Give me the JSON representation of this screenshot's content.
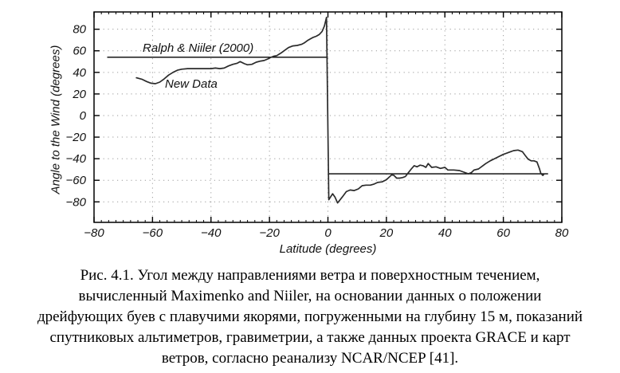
{
  "figure": {
    "caption": {
      "lines": [
        "Рис. 4.1. Угол между направлениями ветра и поверхностным течением,",
        "вычисленный Maximenko and Niiler, на основании данных о положении",
        "дрейфующих буев с плавучими якорями, погруженными на глубину 15 м, показаний",
        "спутниковых альтиметров, гравиметрии, а также данных проекта GRACE и карт",
        "ветров, согласно реанализу NCAR/NCEP [41]."
      ]
    }
  },
  "chart_data": {
    "type": "line",
    "title": "",
    "xlabel": "Latitude (degrees)",
    "ylabel": "Angle to the Wind (degrees)",
    "xlim": [
      -80,
      80
    ],
    "ylim": [
      -99,
      96
    ],
    "xticks": [
      -80,
      -60,
      -40,
      -20,
      0,
      20,
      40,
      60,
      80
    ],
    "yticks": [
      -80,
      -60,
      -40,
      -20,
      0,
      20,
      40,
      60,
      80
    ],
    "x_minor_tick_step": 2.5,
    "grid": "dotted",
    "legend_position": "none",
    "colors": {
      "curve": "#2b2b2b",
      "reference_line": "#000000",
      "grid": "#9a9a9a",
      "frame": "#000000",
      "background": "#ffffff"
    },
    "annotations": [
      {
        "text": "Ralph & Niiler (2000)",
        "x": -63,
        "y": 62
      },
      {
        "text": "New Data",
        "x": -56,
        "y": 27
      }
    ],
    "series": [
      {
        "name": "Ralph & Niiler (2000)",
        "type": "reference-segments",
        "segments": [
          {
            "x": [
              -75.5,
              0
            ],
            "y": 54
          },
          {
            "x": [
              0.3,
              75.3
            ],
            "y": -54
          }
        ]
      },
      {
        "name": "New Data",
        "type": "line",
        "points": [
          [
            -65.5,
            35
          ],
          [
            -63.5,
            33.5
          ],
          [
            -62,
            31.5
          ],
          [
            -60.5,
            30
          ],
          [
            -59,
            29.5
          ],
          [
            -57.5,
            31
          ],
          [
            -56,
            34
          ],
          [
            -54.5,
            37.5
          ],
          [
            -53,
            40
          ],
          [
            -51.5,
            42
          ],
          [
            -50,
            43
          ],
          [
            -48,
            43.5
          ],
          [
            -46,
            43.5
          ],
          [
            -44,
            43.5
          ],
          [
            -42,
            43.5
          ],
          [
            -40,
            43.5
          ],
          [
            -38.5,
            44
          ],
          [
            -37,
            43.5
          ],
          [
            -35.5,
            44
          ],
          [
            -34,
            46
          ],
          [
            -32.5,
            47.5
          ],
          [
            -31,
            48.5
          ],
          [
            -30,
            50
          ],
          [
            -28.5,
            48
          ],
          [
            -27.5,
            47
          ],
          [
            -26,
            47.5
          ],
          [
            -24.5,
            49.5
          ],
          [
            -23,
            50.5
          ],
          [
            -21.8,
            51
          ],
          [
            -20.5,
            52.5
          ],
          [
            -19.5,
            54
          ],
          [
            -18.5,
            55
          ],
          [
            -17.5,
            55.5
          ],
          [
            -16,
            58
          ],
          [
            -15,
            60
          ],
          [
            -13.5,
            63
          ],
          [
            -12,
            64.5
          ],
          [
            -10.5,
            65
          ],
          [
            -9,
            66
          ],
          [
            -8,
            67.5
          ],
          [
            -7,
            69.5
          ],
          [
            -6,
            71
          ],
          [
            -5,
            72.5
          ],
          [
            -4,
            73.5
          ],
          [
            -3,
            75
          ],
          [
            -2,
            78
          ],
          [
            -1.2,
            83
          ],
          [
            -0.5,
            91
          ],
          [
            0.3,
            -78
          ],
          [
            1.6,
            -72.5
          ],
          [
            2.4,
            -75.5
          ],
          [
            3.3,
            -81
          ],
          [
            4.9,
            -75.5
          ],
          [
            6.3,
            -70.5
          ],
          [
            7.6,
            -69
          ],
          [
            9,
            -69.5
          ],
          [
            10.4,
            -68
          ],
          [
            11.7,
            -65
          ],
          [
            13,
            -64.5
          ],
          [
            14.5,
            -64.5
          ],
          [
            15.8,
            -63.5
          ],
          [
            17,
            -62
          ],
          [
            18.5,
            -61.5
          ],
          [
            20,
            -59.5
          ],
          [
            21,
            -57
          ],
          [
            21.8,
            -55
          ],
          [
            22.6,
            -55.5
          ],
          [
            23.5,
            -58
          ],
          [
            24.5,
            -58
          ],
          [
            25.5,
            -57.5
          ],
          [
            26.5,
            -56.5
          ],
          [
            27.5,
            -53
          ],
          [
            28.5,
            -49.5
          ],
          [
            29.5,
            -46.5
          ],
          [
            30.5,
            -47.5
          ],
          [
            31.5,
            -46
          ],
          [
            32.5,
            -46.5
          ],
          [
            33.5,
            -48
          ],
          [
            34.3,
            -44.5
          ],
          [
            35.5,
            -48
          ],
          [
            37,
            -47.5
          ],
          [
            38.5,
            -49
          ],
          [
            40,
            -48
          ],
          [
            41,
            -50.5
          ],
          [
            43,
            -50.5
          ],
          [
            45,
            -51
          ],
          [
            46.5,
            -52.5
          ],
          [
            48,
            -54
          ],
          [
            49,
            -53
          ],
          [
            50,
            -50.5
          ],
          [
            51.5,
            -49.5
          ],
          [
            53,
            -46.5
          ],
          [
            54,
            -44.5
          ],
          [
            55.5,
            -42
          ],
          [
            57,
            -40
          ],
          [
            58.5,
            -38
          ],
          [
            60,
            -36
          ],
          [
            61.5,
            -34.5
          ],
          [
            62.5,
            -33.5
          ],
          [
            63.5,
            -32.5
          ],
          [
            65,
            -32
          ],
          [
            66.5,
            -33.5
          ],
          [
            67.5,
            -37
          ],
          [
            68.5,
            -40.5
          ],
          [
            69.5,
            -42
          ],
          [
            70.5,
            -42
          ],
          [
            71.5,
            -43
          ],
          [
            72.3,
            -49
          ],
          [
            72.8,
            -53.5
          ],
          [
            73.5,
            -55.5
          ],
          [
            74,
            -54
          ]
        ]
      }
    ]
  }
}
